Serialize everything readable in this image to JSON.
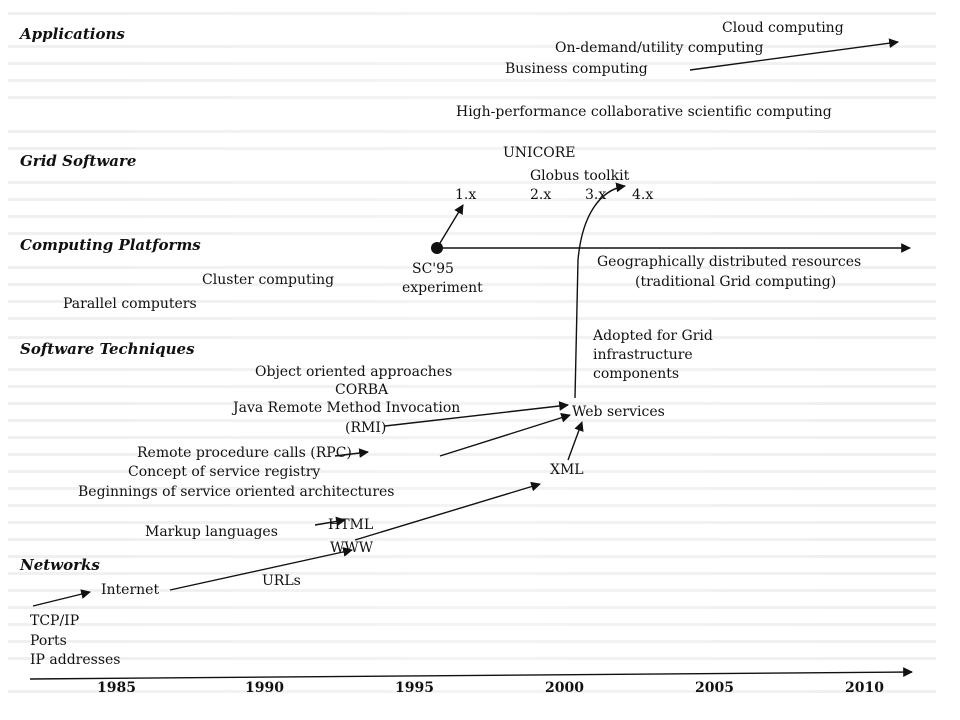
{
  "categories": {
    "applications": "Applications",
    "grid_software": "Grid Software",
    "computing_platforms": "Computing Platforms",
    "software_techniques": "Software Techniques",
    "networks": "Networks"
  },
  "applications": {
    "cloud": "Cloud computing",
    "on_demand": "On-demand/utility computing",
    "business": "Business computing",
    "hpc": "High-performance collaborative scientific computing"
  },
  "grid_software": {
    "unicore": "UNICORE",
    "globus": "Globus toolkit",
    "v1": "1.x",
    "v2": "2.x",
    "v3": "3.x",
    "v4": "4.x"
  },
  "computing_platforms": {
    "sc95_line1": "SC'95",
    "sc95_line2": "experiment",
    "cluster": "Cluster computing",
    "parallel": "Parallel computers",
    "geo_line1": "Geographically distributed resources",
    "geo_line2": "(traditional Grid computing)"
  },
  "software_techniques": {
    "adopted_line1": "Adopted for Grid",
    "adopted_line2": "infrastructure",
    "adopted_line3": "components",
    "oo": "Object oriented approaches",
    "corba": "CORBA",
    "java_rmi": "Java Remote Method Invocation",
    "rmi": "(RMI)",
    "web_services": "Web services",
    "rpc": "Remote procedure calls (RPC)",
    "registry": "Concept of service registry",
    "xml": "XML",
    "soa": "Beginnings of service oriented architectures",
    "markup": "Markup languages",
    "html": "HTML",
    "www": "WWW"
  },
  "networks": {
    "urls": "URLs",
    "internet": "Internet",
    "tcpip": "TCP/IP",
    "ports": "Ports",
    "ip": "IP addresses"
  },
  "timeline": {
    "years": [
      "1985",
      "1990",
      "1995",
      "2000",
      "2005",
      "2010"
    ]
  },
  "colors": {
    "ink": "#111111",
    "ghost_text": "#aaaaaa"
  }
}
